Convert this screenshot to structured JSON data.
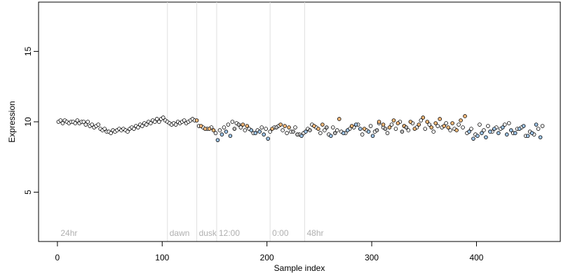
{
  "chart_data": {
    "type": "scatter",
    "title": "",
    "xlabel": "Sample index",
    "ylabel": "Expression",
    "xlim": [
      -18,
      480
    ],
    "ylim": [
      1.5,
      18.5
    ],
    "x_ticks": [
      0,
      100,
      200,
      300,
      400
    ],
    "y_ticks": [
      5,
      10,
      15
    ],
    "grid": false,
    "legend": "none",
    "vertical_markers": [
      {
        "x": 105,
        "label": "dawn"
      },
      {
        "x": 133,
        "label": "dusk"
      },
      {
        "x": 152,
        "label": "12:00"
      },
      {
        "x": 203,
        "label": "0:00"
      },
      {
        "x": 236,
        "label": "48hr"
      }
    ],
    "region_labels": [
      {
        "x": 3,
        "label": "24hr"
      }
    ],
    "colors": {
      "marker_line": "#e0e0e0",
      "marker_text": "#b0b0b0",
      "point_edge": "#000000",
      "default_fill": "#ffffff",
      "series_orange": "#f4b97a",
      "series_blue": "#9ec3e6",
      "series_gray": "#bdbdbd"
    },
    "series": [
      {
        "color_key": "default_fill",
        "x": [
          1,
          3,
          5,
          7,
          9,
          11,
          13,
          15,
          17,
          19,
          21,
          23,
          25,
          27,
          29,
          31,
          33,
          35,
          37,
          39,
          41,
          43,
          45,
          47,
          49,
          51,
          53,
          55,
          57,
          59,
          61,
          63,
          65,
          67,
          69,
          71,
          73,
          75,
          77,
          79,
          81,
          83,
          85,
          87,
          89,
          91,
          93,
          95,
          97,
          99,
          101,
          103,
          105,
          107,
          109,
          111,
          113,
          115,
          117,
          119,
          121,
          123,
          125,
          127,
          129,
          131,
          135,
          139,
          143,
          147,
          151,
          155,
          159,
          163,
          167,
          171,
          175,
          179,
          183,
          187,
          191,
          195,
          199,
          203,
          207,
          211,
          215,
          219,
          223,
          227,
          231,
          235,
          239,
          243,
          247,
          251,
          255,
          259,
          263,
          267,
          271,
          275,
          279,
          283,
          287,
          291,
          295,
          299,
          303,
          307,
          311,
          315,
          319,
          323,
          327,
          331,
          335,
          339,
          343,
          347,
          351,
          355,
          359,
          363,
          367,
          371,
          375,
          379,
          383,
          387,
          391,
          395,
          399,
          403,
          407,
          411,
          415,
          419,
          423,
          427,
          431,
          435,
          439,
          443,
          447,
          451,
          455,
          459,
          463
        ],
        "y": [
          10.0,
          10.1,
          9.9,
          10.1,
          10.0,
          9.9,
          10.0,
          10.0,
          9.9,
          10.1,
          9.9,
          10.0,
          10.0,
          9.8,
          10.0,
          9.7,
          9.8,
          9.6,
          9.7,
          9.8,
          9.5,
          9.4,
          9.5,
          9.3,
          9.3,
          9.2,
          9.4,
          9.3,
          9.4,
          9.5,
          9.4,
          9.5,
          9.4,
          9.3,
          9.5,
          9.6,
          9.5,
          9.7,
          9.6,
          9.8,
          9.7,
          9.9,
          9.8,
          10.0,
          9.9,
          10.1,
          10.0,
          10.2,
          10.0,
          10.2,
          10.3,
          10.1,
          10.0,
          9.9,
          9.8,
          9.9,
          9.8,
          10.0,
          9.9,
          10.0,
          10.1,
          9.9,
          10.0,
          10.1,
          10.2,
          10.1,
          9.7,
          9.6,
          9.5,
          9.6,
          9.2,
          9.4,
          9.6,
          9.8,
          10.0,
          9.9,
          9.6,
          9.4,
          9.5,
          9.2,
          9.4,
          9.6,
          9.5,
          9.3,
          9.6,
          9.7,
          9.4,
          9.2,
          9.3,
          9.6,
          9.1,
          9.2,
          9.5,
          9.8,
          9.6,
          9.2,
          9.4,
          9.1,
          9.6,
          9.4,
          9.3,
          9.2,
          9.5,
          9.6,
          9.8,
          9.1,
          9.4,
          9.7,
          9.3,
          9.9,
          9.6,
          9.2,
          9.8,
          9.5,
          10.0,
          9.7,
          9.4,
          9.9,
          9.6,
          10.1,
          9.5,
          9.8,
          9.3,
          9.7,
          9.6,
          9.9,
          9.4,
          9.5,
          9.8,
          9.6,
          9.2,
          9.5,
          9.1,
          9.8,
          9.4,
          9.7,
          9.3,
          9.6,
          9.5,
          9.8,
          9.9,
          9.2,
          9.5,
          9.6,
          9.0,
          9.3,
          9.1,
          9.5,
          9.7
        ]
      },
      {
        "color_key": "series_orange",
        "x": [
          133,
          137,
          141,
          145,
          149,
          177,
          181,
          205,
          213,
          217,
          221,
          245,
          249,
          253,
          269,
          281,
          293,
          307,
          311,
          317,
          321,
          325,
          331,
          337,
          341,
          345,
          349,
          353,
          357,
          361,
          365,
          369,
          373,
          377,
          381,
          385,
          389
        ],
        "y": [
          10.1,
          9.7,
          9.5,
          9.5,
          9.4,
          9.8,
          9.7,
          9.5,
          9.8,
          9.7,
          9.6,
          9.7,
          9.5,
          9.8,
          10.2,
          9.7,
          9.5,
          10.0,
          9.8,
          9.6,
          10.1,
          9.9,
          9.7,
          10.0,
          9.5,
          9.8,
          10.3,
          10.0,
          9.6,
          9.9,
          10.2,
          9.7,
          9.6,
          9.9,
          9.4,
          10.1,
          10.4
        ]
      },
      {
        "color_key": "series_blue",
        "x": [
          153,
          157,
          161,
          165,
          185,
          189,
          193,
          197,
          201,
          233,
          237,
          261,
          273,
          277,
          285,
          289,
          297,
          301,
          393,
          397,
          401,
          405,
          409,
          413,
          417,
          421,
          425,
          429,
          433,
          437,
          441,
          445,
          449,
          453,
          457,
          461
        ],
        "y": [
          8.7,
          9.1,
          9.3,
          9.0,
          9.4,
          9.2,
          9.3,
          9.1,
          8.8,
          9.0,
          9.3,
          9.0,
          9.2,
          9.4,
          9.8,
          9.5,
          9.3,
          9.0,
          9.3,
          8.8,
          9.0,
          9.2,
          8.9,
          9.3,
          9.5,
          9.2,
          9.6,
          9.1,
          9.4,
          9.2,
          9.5,
          9.7,
          9.0,
          9.2,
          9.8,
          8.9
        ]
      },
      {
        "color_key": "series_gray",
        "x": [
          169,
          173,
          209,
          225,
          229,
          241,
          257,
          265,
          305,
          313,
          329,
          333
        ],
        "y": [
          9.5,
          9.8,
          9.6,
          9.3,
          9.1,
          9.4,
          9.6,
          9.2,
          9.4,
          9.5,
          9.3,
          9.6
        ]
      }
    ]
  }
}
